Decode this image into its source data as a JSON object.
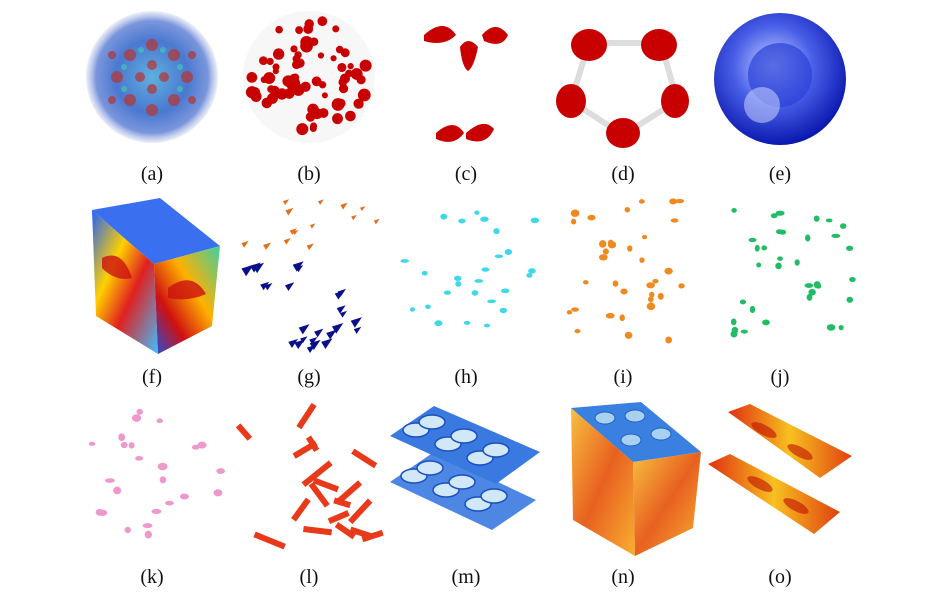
{
  "figure": {
    "panels": [
      {
        "id": "a",
        "label": "(a)",
        "icon": "sphere-colormap-render",
        "colors": [
          "#3b5bd6",
          "#c0392b",
          "#48c9b0"
        ]
      },
      {
        "id": "b",
        "label": "(b)",
        "icon": "sphere-red-blobs-render",
        "colors": [
          "#cc0000"
        ]
      },
      {
        "id": "c",
        "label": "(c)",
        "icon": "four-red-lobes-render",
        "colors": [
          "#cc0000"
        ]
      },
      {
        "id": "d",
        "label": "(d)",
        "icon": "pentagon-red-lobes-render",
        "colors": [
          "#cc0000"
        ]
      },
      {
        "id": "e",
        "label": "(e)",
        "icon": "blue-sphere-shell-render",
        "colors": [
          "#1f3fd6"
        ]
      },
      {
        "id": "f",
        "label": "(f)",
        "icon": "cube-colormap-render",
        "colors": [
          "#2060ff",
          "#ffd000",
          "#e02020",
          "#40d0a0"
        ]
      },
      {
        "id": "g",
        "label": "(g)",
        "icon": "orange-blue-features-render",
        "colors": [
          "#e07020",
          "#0a108a"
        ]
      },
      {
        "id": "h",
        "label": "(h)",
        "icon": "cyan-features-render",
        "colors": [
          "#40d8e8"
        ]
      },
      {
        "id": "i",
        "label": "(i)",
        "icon": "orange-features-render",
        "colors": [
          "#ee8a20"
        ]
      },
      {
        "id": "j",
        "label": "(j)",
        "icon": "green-features-render",
        "colors": [
          "#22bb66"
        ]
      },
      {
        "id": "k",
        "label": "(k)",
        "icon": "pink-features-render",
        "colors": [
          "#ee99cc"
        ]
      },
      {
        "id": "l",
        "label": "(l)",
        "icon": "red-sheets-render",
        "colors": [
          "#e83a1a"
        ]
      },
      {
        "id": "m",
        "label": "(m)",
        "icon": "blue-slabs-render",
        "colors": [
          "#3a7ae0",
          "#d0e8f8"
        ]
      },
      {
        "id": "n",
        "label": "(n)",
        "icon": "orange-cube-render",
        "colors": [
          "#f0a030",
          "#e04010",
          "#3a80e0"
        ]
      },
      {
        "id": "o",
        "label": "(o)",
        "icon": "twin-red-slabs-render",
        "colors": [
          "#e03010",
          "#f8c020"
        ]
      }
    ]
  }
}
